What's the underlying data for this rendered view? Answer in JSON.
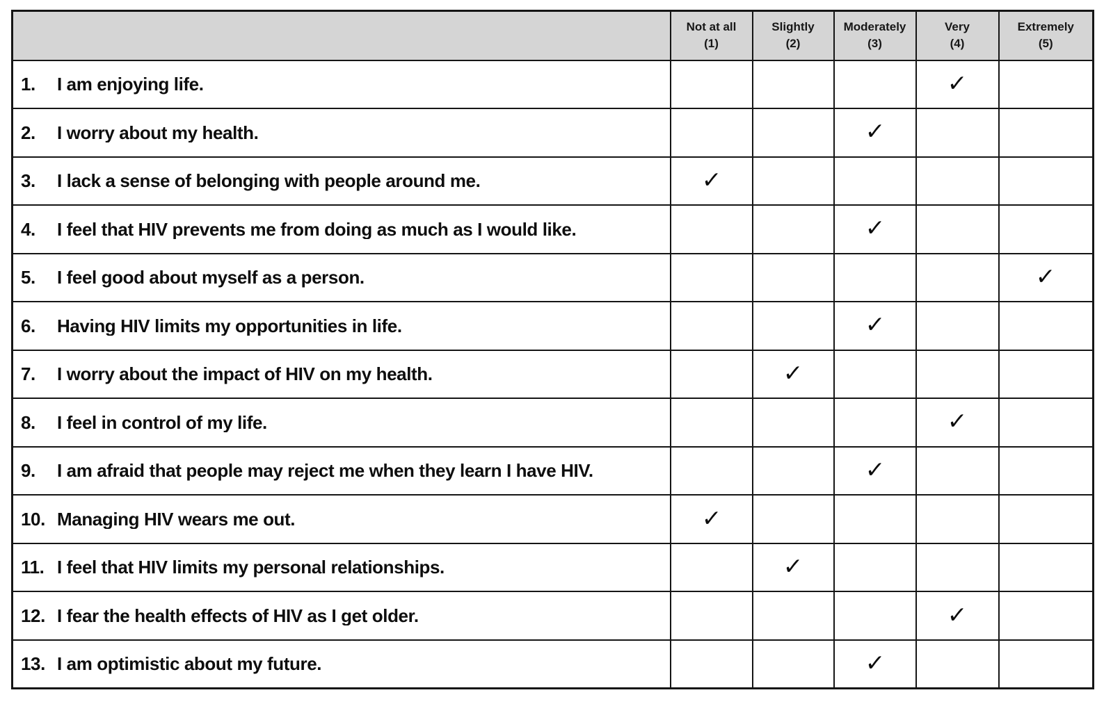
{
  "table": {
    "check_glyph": "✓",
    "colors": {
      "header_bg": "#d5d5d5",
      "border": "#151515",
      "text": "#0e0e0e"
    },
    "columns": [
      {
        "label": "Not at all",
        "value": "(1)"
      },
      {
        "label": "Slightly",
        "value": "(2)"
      },
      {
        "label": "Moderately",
        "value": "(3)"
      },
      {
        "label": "Very",
        "value": "(4)"
      },
      {
        "label": "Extremely",
        "value": "(5)"
      }
    ],
    "rows": [
      {
        "number": "1.",
        "text": "I am enjoying life.",
        "answer": 4
      },
      {
        "number": "2.",
        "text": "I worry about my health.",
        "answer": 3
      },
      {
        "number": "3.",
        "text": "I lack a sense of belonging with people around me.",
        "answer": 1
      },
      {
        "number": "4.",
        "text": "I feel that HIV prevents me from doing as much as I would like.",
        "answer": 3
      },
      {
        "number": "5.",
        "text": "I feel good about myself as a person.",
        "answer": 5
      },
      {
        "number": "6.",
        "text": "Having HIV limits my opportunities in life.",
        "answer": 3
      },
      {
        "number": "7.",
        "text": "I worry about the impact of HIV on my health.",
        "answer": 2
      },
      {
        "number": "8.",
        "text": "I feel in control of my life.",
        "answer": 4
      },
      {
        "number": "9.",
        "text": "I am afraid that people may reject me when they learn I have HIV.",
        "answer": 3
      },
      {
        "number": "10.",
        "text": "Managing HIV wears me out.",
        "answer": 1
      },
      {
        "number": "11.",
        "text": "I feel that HIV limits my personal relationships.",
        "answer": 2
      },
      {
        "number": "12.",
        "text": "I fear the health effects of HIV as I get older.",
        "answer": 4
      },
      {
        "number": "13.",
        "text": "I am optimistic about my future.",
        "answer": 3
      }
    ]
  }
}
